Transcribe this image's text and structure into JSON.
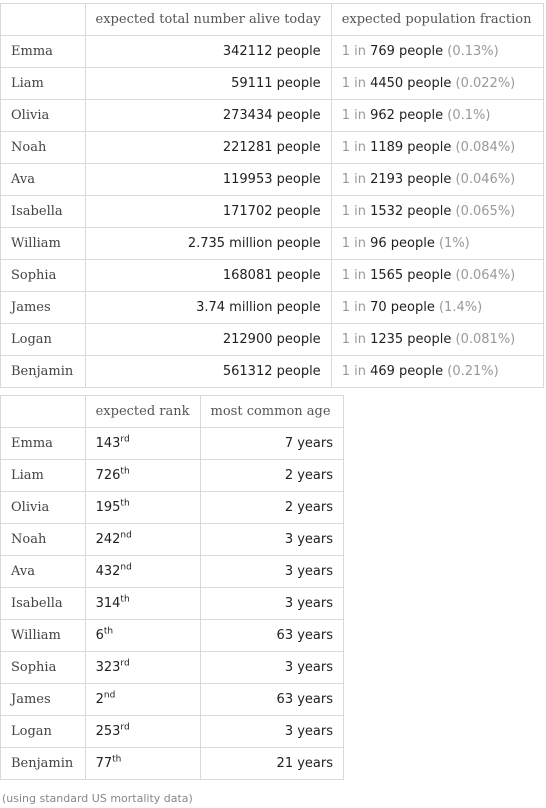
{
  "table1": {
    "headers": [
      "",
      "expected total number alive today",
      "expected population fraction"
    ],
    "rows": [
      {
        "name": "Emma",
        "total": "342112 people",
        "fraction_prefix": "1 in",
        "fraction_value": "769 people",
        "fraction_pct": "(0.13%)"
      },
      {
        "name": "Liam",
        "total": "59111 people",
        "fraction_prefix": "1 in",
        "fraction_value": "4450 people",
        "fraction_pct": "(0.022%)"
      },
      {
        "name": "Olivia",
        "total": "273434 people",
        "fraction_prefix": "1 in",
        "fraction_value": "962 people",
        "fraction_pct": "(0.1%)"
      },
      {
        "name": "Noah",
        "total": "221281 people",
        "fraction_prefix": "1 in",
        "fraction_value": "1189 people",
        "fraction_pct": "(0.084%)"
      },
      {
        "name": "Ava",
        "total": "119953 people",
        "fraction_prefix": "1 in",
        "fraction_value": "2193 people",
        "fraction_pct": "(0.046%)"
      },
      {
        "name": "Isabella",
        "total": "171702 people",
        "fraction_prefix": "1 in",
        "fraction_value": "1532 people",
        "fraction_pct": "(0.065%)"
      },
      {
        "name": "William",
        "total": "2.735 million people",
        "fraction_prefix": "1 in",
        "fraction_value": "96 people",
        "fraction_pct": "(1%)"
      },
      {
        "name": "Sophia",
        "total": "168081 people",
        "fraction_prefix": "1 in",
        "fraction_value": "1565 people",
        "fraction_pct": "(0.064%)"
      },
      {
        "name": "James",
        "total": "3.74 million people",
        "fraction_prefix": "1 in",
        "fraction_value": "70 people",
        "fraction_pct": "(1.4%)"
      },
      {
        "name": "Logan",
        "total": "212900 people",
        "fraction_prefix": "1 in",
        "fraction_value": "1235 people",
        "fraction_pct": "(0.081%)"
      },
      {
        "name": "Benjamin",
        "total": "561312 people",
        "fraction_prefix": "1 in",
        "fraction_value": "469 people",
        "fraction_pct": "(0.21%)"
      }
    ]
  },
  "table2": {
    "headers": [
      "",
      "expected rank",
      "most common age"
    ],
    "rows": [
      {
        "name": "Emma",
        "rank": "143",
        "suffix": "rd",
        "age": "7 years"
      },
      {
        "name": "Liam",
        "rank": "726",
        "suffix": "th",
        "age": "2 years"
      },
      {
        "name": "Olivia",
        "rank": "195",
        "suffix": "th",
        "age": "2 years"
      },
      {
        "name": "Noah",
        "rank": "242",
        "suffix": "nd",
        "age": "3 years"
      },
      {
        "name": "Ava",
        "rank": "432",
        "suffix": "nd",
        "age": "3 years"
      },
      {
        "name": "Isabella",
        "rank": "314",
        "suffix": "th",
        "age": "3 years"
      },
      {
        "name": "William",
        "rank": "6",
        "suffix": "th",
        "age": "63 years"
      },
      {
        "name": "Sophia",
        "rank": "323",
        "suffix": "rd",
        "age": "3 years"
      },
      {
        "name": "James",
        "rank": "2",
        "suffix": "nd",
        "age": "63 years"
      },
      {
        "name": "Logan",
        "rank": "253",
        "suffix": "rd",
        "age": "3 years"
      },
      {
        "name": "Benjamin",
        "rank": "77",
        "suffix": "th",
        "age": "21 years"
      }
    ]
  },
  "footnote": "(using standard US mortality data)"
}
